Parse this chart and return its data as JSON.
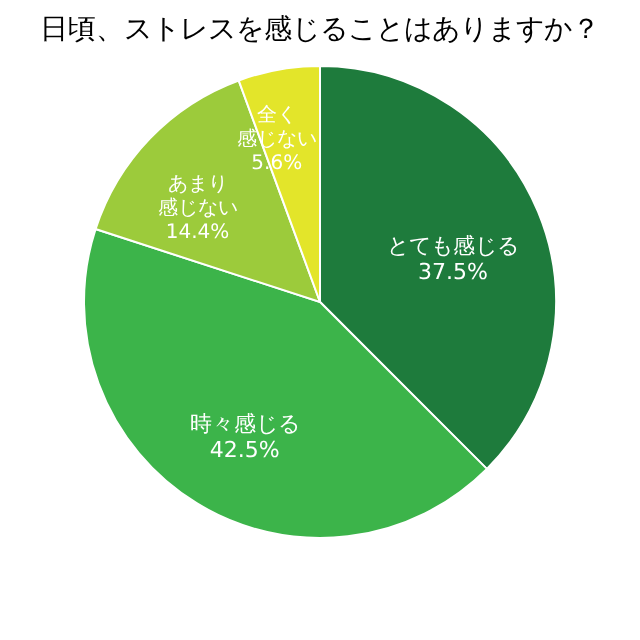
{
  "chart_data": {
    "type": "pie",
    "title": "日頃、ストレスを感じることはありますか？",
    "categories": [
      "とても感じる",
      "時々感じる",
      "あまり感じない",
      "全く感じない"
    ],
    "values": [
      37.5,
      42.5,
      14.4,
      5.6
    ],
    "value_labels": [
      "37.5%",
      "42.5%",
      "14.4%",
      "5.6%"
    ],
    "colors": [
      "#1e7b3c",
      "#3cb44a",
      "#9ccb3b",
      "#e3e52a"
    ],
    "legend": false
  }
}
